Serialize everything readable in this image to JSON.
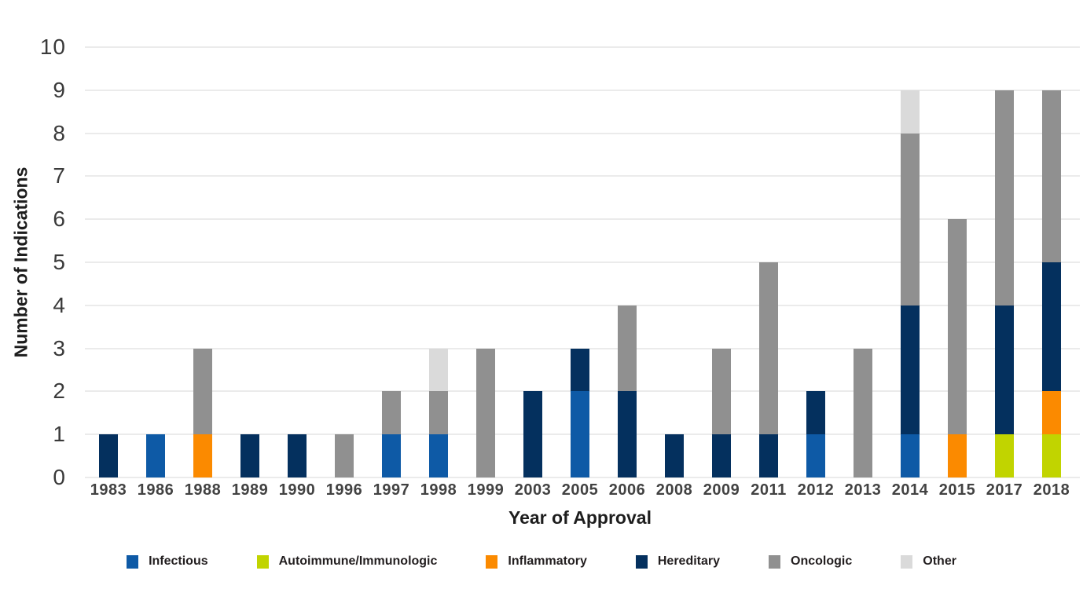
{
  "chart_data": {
    "type": "bar",
    "stacked": true,
    "title": "",
    "xlabel": "Year of Approval",
    "ylabel": "Number of Indications",
    "ylim": [
      0,
      10
    ],
    "ytick_step": 1,
    "grid": true,
    "legend_position": "bottom",
    "background_color": "#ffffff",
    "gridline_color": "#ebebeb",
    "categories": [
      "1983",
      "1986",
      "1988",
      "1989",
      "1990",
      "1996",
      "1997",
      "1998",
      "1999",
      "2003",
      "2005",
      "2006",
      "2008",
      "2009",
      "2011",
      "2012",
      "2013",
      "2014",
      "2015",
      "2017",
      "2018"
    ],
    "series": [
      {
        "name": "Infectious",
        "color": "#0e5aa6",
        "values": [
          0,
          1,
          0,
          0,
          0,
          0,
          1,
          1,
          0,
          0,
          2,
          0,
          0,
          0,
          0,
          1,
          0,
          1,
          0,
          0,
          0
        ]
      },
      {
        "name": "Autoimmune/Immunologic",
        "color": "#c1d400",
        "values": [
          0,
          0,
          0,
          0,
          0,
          0,
          0,
          0,
          0,
          0,
          0,
          0,
          0,
          0,
          0,
          0,
          0,
          0,
          0,
          1,
          1
        ]
      },
      {
        "name": "Inflammatory",
        "color": "#fb8a00",
        "values": [
          0,
          0,
          1,
          0,
          0,
          0,
          0,
          0,
          0,
          0,
          0,
          0,
          0,
          0,
          0,
          0,
          0,
          0,
          1,
          0,
          1
        ]
      },
      {
        "name": "Hereditary",
        "color": "#04305e",
        "values": [
          1,
          0,
          0,
          1,
          1,
          0,
          0,
          0,
          0,
          2,
          1,
          2,
          1,
          1,
          1,
          1,
          0,
          3,
          0,
          3,
          3
        ]
      },
      {
        "name": "Oncologic",
        "color": "#909090",
        "values": [
          0,
          0,
          2,
          0,
          0,
          1,
          1,
          1,
          3,
          0,
          0,
          2,
          0,
          2,
          4,
          0,
          3,
          4,
          5,
          5,
          4
        ]
      },
      {
        "name": "Other",
        "color": "#dadada",
        "values": [
          0,
          0,
          0,
          0,
          0,
          0,
          0,
          1,
          0,
          0,
          0,
          0,
          0,
          0,
          0,
          0,
          0,
          1,
          0,
          0,
          0
        ]
      }
    ],
    "totals_by_category": [
      1,
      1,
      3,
      1,
      1,
      1,
      2,
      3,
      3,
      2,
      3,
      4,
      1,
      3,
      5,
      2,
      3,
      9,
      6,
      9,
      9
    ]
  }
}
